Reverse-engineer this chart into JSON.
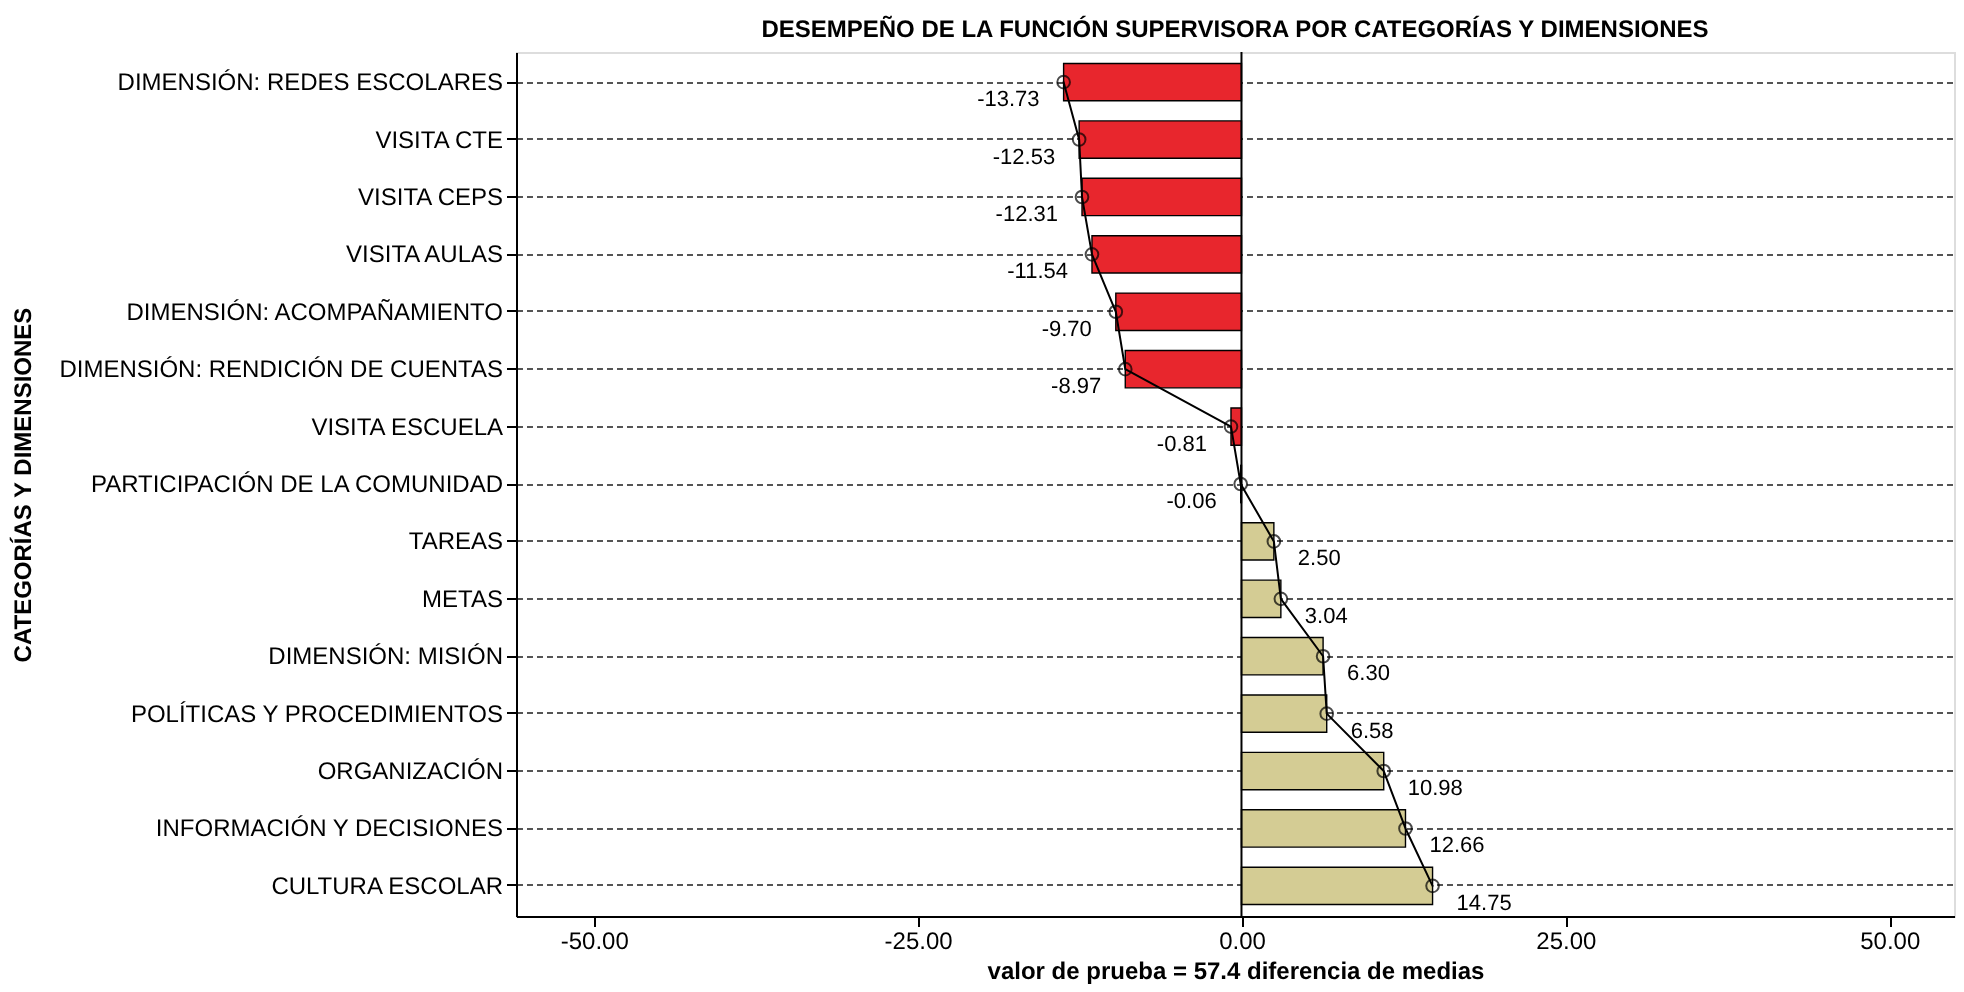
{
  "chart_data": {
    "type": "bar",
    "orientation": "horizontal",
    "title": "DESEMPEÑO DE LA FUNCIÓN SUPERVISORA POR CATEGORÍAS Y DIMENSIONES",
    "xlabel": "valor de prueba = 57.4 diferencia de medias",
    "ylabel": "CATEGORÍAS Y DIMENSIONES",
    "categories": [
      "DIMENSIÓN: REDES ESCOLARES",
      "VISITA CTE",
      "VISITA CEPS",
      "VISITA AULAS",
      "DIMENSIÓN: ACOMPAÑAMIENTO",
      "DIMENSIÓN: RENDICIÓN DE CUENTAS",
      "VISITA ESCUELA",
      "PARTICIPACIÓN DE LA COMUNIDAD",
      "TAREAS",
      "METAS",
      "DIMENSIÓN: MISIÓN",
      "POLÍTICAS Y PROCEDIMIENTOS",
      "ORGANIZACIÓN",
      "INFORMACIÓN Y DECISIONES",
      "CULTURA ESCOLAR"
    ],
    "series": [
      {
        "type": "bar",
        "colors": [
          "#e8262d",
          "#e8262d",
          "#e8262d",
          "#e8262d",
          "#e8262d",
          "#e8262d",
          "#e8262d",
          "#e8262d",
          "#d4cc94",
          "#d4cc94",
          "#d4cc94",
          "#d4cc94",
          "#d4cc94",
          "#d4cc94",
          "#d4cc94"
        ],
        "values": [
          -13.73,
          -12.53,
          -12.31,
          -11.54,
          -9.7,
          -8.97,
          -0.81,
          -0.06,
          2.5,
          3.04,
          6.3,
          6.58,
          10.98,
          12.66,
          14.75
        ],
        "value_labels": [
          "-13.73",
          "-12.53",
          "-12.31",
          "-11.54",
          "-9.70",
          "-8.97",
          "-0.81",
          "-0.06",
          "2.50",
          "3.04",
          "6.30",
          "6.58",
          "10.98",
          "12.66",
          "14.75"
        ]
      },
      {
        "type": "line",
        "color": "#000000",
        "marker": "circle",
        "values": [
          -13.73,
          -12.53,
          -12.31,
          -11.54,
          -9.7,
          -8.97,
          -0.81,
          -0.06,
          2.5,
          3.04,
          6.3,
          6.58,
          10.98,
          12.66,
          14.75
        ]
      }
    ],
    "xlim": [
      -56,
      55
    ],
    "xticks": [
      {
        "value": -50,
        "label": "-50.00"
      },
      {
        "value": -25,
        "label": "-25.00"
      },
      {
        "value": 0,
        "label": "0.00"
      },
      {
        "value": 25,
        "label": "25.00"
      },
      {
        "value": 50,
        "label": "50.00"
      }
    ],
    "grid": "y",
    "ref_lines": [
      {
        "axis": "x",
        "value": 0,
        "color": "#000000"
      }
    ]
  }
}
